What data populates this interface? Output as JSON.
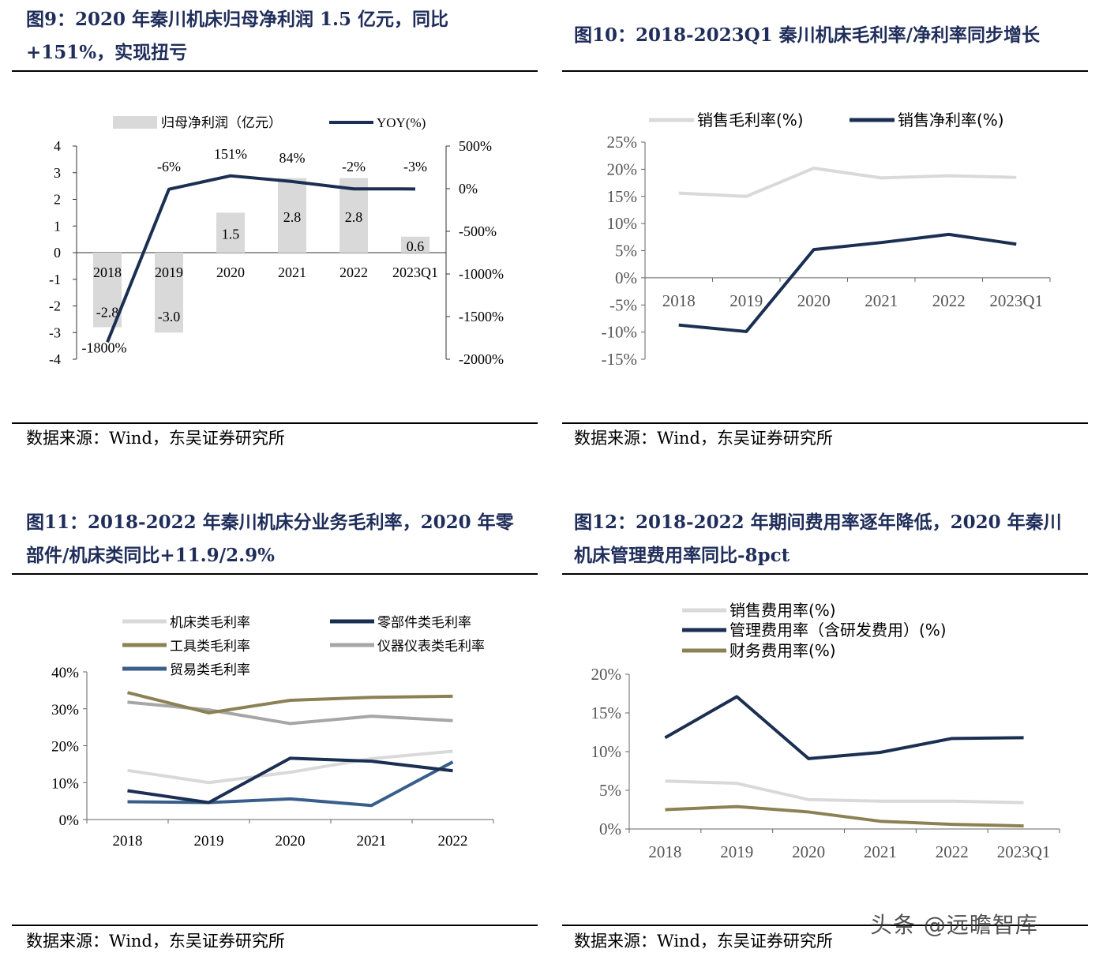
{
  "watermark": "头条 @远瞻智库",
  "colors": {
    "navy": "#1b2f52",
    "lightgray": "#d9d9d9",
    "olive": "#8b8155",
    "midgray": "#a6a6a6",
    "steel": "#3a5e8c"
  },
  "chart_data": [
    {
      "id": "fig9",
      "type": "bar+line",
      "title_lines": [
        "图9：2020 年秦川机床归母净利润 1.5 亿元，同比",
        "+151%，实现扭亏"
      ],
      "source": "数据来源：Wind，东吴证券研究所",
      "categories": [
        "2018",
        "2019",
        "2020",
        "2021",
        "2022",
        "2023Q1"
      ],
      "series": [
        {
          "name": "归母净利润（亿元）",
          "kind": "bar",
          "axis": "left",
          "values": [
            -2.8,
            -3.0,
            1.5,
            2.8,
            2.8,
            0.6
          ],
          "labels": [
            "-2.8",
            "-3.0",
            "1.5",
            "2.8",
            "2.8",
            "0.6"
          ]
        },
        {
          "name": "YOY(%)",
          "kind": "line",
          "axis": "right",
          "values": [
            -1800,
            -6,
            151,
            84,
            -2,
            -3
          ],
          "labels": [
            "-1800%",
            "-6%",
            "151%",
            "84%",
            "-2%",
            "-3%"
          ]
        }
      ],
      "left_axis": {
        "ylim": [
          -4,
          4
        ],
        "ticks": [
          "4",
          "3",
          "2",
          "1",
          "0",
          "-1",
          "-2",
          "-3",
          "-4"
        ]
      },
      "right_axis": {
        "ylim": [
          -2000,
          500
        ],
        "ticks": [
          "500%",
          "0%",
          "-500%",
          "-1000%",
          "-1500%",
          "-2000%"
        ]
      }
    },
    {
      "id": "fig10",
      "type": "line",
      "title_lines": [
        "图10：2018-2023Q1 秦川机床毛利率/净利率同步增长"
      ],
      "source": "数据来源：Wind，东吴证券研究所",
      "categories": [
        "2018",
        "2019",
        "2020",
        "2021",
        "2022",
        "2023Q1"
      ],
      "series": [
        {
          "name": "销售毛利率(%)",
          "values": [
            15.6,
            15.0,
            20.2,
            18.4,
            18.8,
            18.5
          ]
        },
        {
          "name": "销售净利率(%)",
          "values": [
            -8.7,
            -9.9,
            5.2,
            6.5,
            8.0,
            6.2
          ]
        }
      ],
      "ylim": [
        -15,
        25
      ],
      "ticks": [
        "25%",
        "20%",
        "15%",
        "10%",
        "5%",
        "0%",
        "-5%",
        "-10%",
        "-15%"
      ]
    },
    {
      "id": "fig11",
      "type": "line",
      "title_lines": [
        "图11：2018-2022 年秦川机床分业务毛利率，2020 年零",
        "部件/机床类同比+11.9/2.9%"
      ],
      "source": "数据来源：Wind，东吴证券研究所",
      "categories": [
        "2018",
        "2019",
        "2020",
        "2021",
        "2022"
      ],
      "series": [
        {
          "name": "机床类毛利率",
          "values": [
            13.3,
            10.0,
            12.8,
            16.5,
            18.5
          ]
        },
        {
          "name": "零部件类毛利率",
          "values": [
            7.8,
            4.6,
            16.6,
            15.8,
            13.2
          ]
        },
        {
          "name": "工具类毛利率",
          "values": [
            34.4,
            28.9,
            32.3,
            33.1,
            33.4
          ]
        },
        {
          "name": "仪器仪表类毛利率",
          "values": [
            31.8,
            29.7,
            26.0,
            28.0,
            26.8
          ]
        },
        {
          "name": "贸易类毛利率",
          "values": [
            4.8,
            4.6,
            5.6,
            3.8,
            15.6
          ]
        }
      ],
      "ylim": [
        0,
        40
      ],
      "ticks": [
        "40%",
        "30%",
        "20%",
        "10%",
        "0%"
      ]
    },
    {
      "id": "fig12",
      "type": "line",
      "title_lines": [
        "图12：2018-2022 年期间费用率逐年降低，2020 年秦川",
        "机床管理费用率同比-8pct"
      ],
      "source": "数据来源：Wind，东吴证券研究所",
      "categories": [
        "2018",
        "2019",
        "2020",
        "2021",
        "2022",
        "2023Q1"
      ],
      "series": [
        {
          "name": "销售费用率(%)",
          "values": [
            6.2,
            5.9,
            3.8,
            3.6,
            3.6,
            3.4
          ]
        },
        {
          "name": "管理费用率（含研发费用）(%)",
          "values": [
            11.8,
            17.1,
            9.1,
            9.9,
            11.7,
            11.8
          ]
        },
        {
          "name": "财务费用率(%)",
          "values": [
            2.5,
            2.9,
            2.2,
            1.0,
            0.6,
            0.4
          ]
        }
      ],
      "ylim": [
        0,
        20
      ],
      "ticks": [
        "20%",
        "15%",
        "10%",
        "5%",
        "0%"
      ]
    }
  ]
}
